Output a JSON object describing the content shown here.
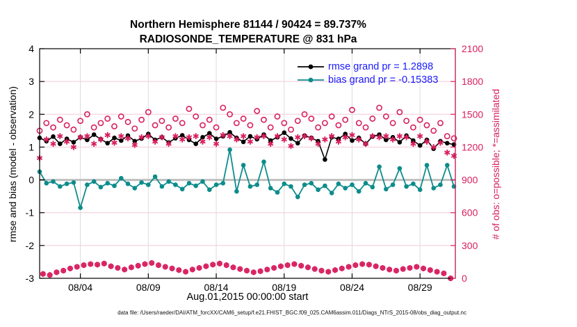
{
  "chart_data": {
    "type": "line",
    "title": "Northern Hemisphere 81144 / 90424 = 89.737%",
    "subtitle": "RADIOSONDE_TEMPERATURE @ 831 hPa",
    "xlabel": "Aug.01,2015 00:00:00 start",
    "footer": "data file: /Users/raeder/DAI/ATM_forcXX/CAM6_setup/f.e21.FHIST_BGC.f09_025.CAM6assim.011/Diags_NTrS_2015-08/obs_diag_output.nc",
    "legend": [
      {
        "label": "rmse grand pr = 1.2898",
        "series": "rmse"
      },
      {
        "label": "bias grand pr = -0.15383",
        "series": "bias"
      }
    ],
    "legend_position": "upper right inside, no box",
    "grid": true,
    "colors": {
      "rmse": "#000000",
      "bias": "#0d8c8c",
      "obs": "#d81e5f",
      "legend_text": "#1a1aff",
      "grid_v": "#dcdcdc",
      "grid_h": "#f2c9d7",
      "zero_line": "#bfbfbf",
      "axis_box": "#000000"
    },
    "x_axis": {
      "range_days": [
        0,
        30.6
      ],
      "tick_days": [
        3,
        8,
        13,
        18,
        23,
        28
      ],
      "tick_labels": [
        "08/04",
        "08/09",
        "08/14",
        "08/19",
        "08/24",
        "08/29"
      ]
    },
    "left_axis": {
      "label": "rmse and bias (model - observation)",
      "range": [
        -3,
        4
      ],
      "tick_values": [
        4,
        3,
        2,
        1,
        0,
        -1,
        -2,
        -3
      ],
      "tick_labels": [
        "4",
        "3",
        "2",
        "1",
        "0",
        "-1",
        "-2",
        "-3"
      ],
      "zero_reference_line": 0
    },
    "right_axis": {
      "label": "# of obs: o=possible; *=assimilated",
      "range": [
        0,
        2100
      ],
      "tick_values": [
        2100,
        1800,
        1500,
        1200,
        900,
        600,
        300,
        0
      ],
      "tick_labels": [
        "2100",
        "1800",
        "1500",
        "1200",
        "900",
        "600",
        "300",
        "0"
      ]
    },
    "series": {
      "time_days": [
        0,
        0.5,
        1,
        1.5,
        2,
        2.5,
        3,
        3.5,
        4,
        4.5,
        5,
        5.5,
        6,
        6.5,
        7,
        7.5,
        8,
        8.5,
        9,
        9.5,
        10,
        10.5,
        11,
        11.5,
        12,
        12.5,
        13,
        13.5,
        14,
        14.5,
        15,
        15.5,
        16,
        16.5,
        17,
        17.5,
        18,
        18.5,
        19,
        19.5,
        20,
        20.5,
        21,
        21.5,
        22,
        22.5,
        23,
        23.5,
        24,
        24.5,
        25,
        25.5,
        26,
        26.5,
        27,
        27.5,
        28,
        28.5,
        29,
        29.5,
        30,
        30.5
      ],
      "rmse": [
        1.28,
        1.18,
        1.32,
        1.1,
        1.25,
        1.15,
        1.3,
        1.22,
        1.38,
        1.24,
        1.12,
        1.28,
        1.2,
        1.35,
        1.18,
        1.26,
        1.4,
        1.22,
        1.3,
        1.14,
        1.27,
        1.36,
        1.22,
        1.1,
        1.3,
        1.42,
        1.25,
        1.33,
        1.45,
        1.28,
        1.16,
        1.33,
        1.24,
        1.38,
        1.2,
        1.3,
        1.44,
        1.26,
        1.12,
        1.35,
        1.28,
        1.18,
        0.62,
        1.3,
        1.25,
        1.4,
        1.2,
        1.28,
        1.1,
        1.32,
        1.38,
        1.22,
        1.3,
        1.15,
        1.35,
        1.2,
        1.05,
        1.22,
        0.95,
        1.18,
        1.12,
        1.08
      ],
      "bias": [
        0.25,
        -0.1,
        -0.05,
        -0.2,
        -0.12,
        -0.08,
        -0.85,
        -0.15,
        -0.05,
        -0.22,
        -0.1,
        -0.18,
        0.05,
        -0.12,
        -0.25,
        -0.08,
        -0.15,
        0.1,
        -0.2,
        -0.05,
        -0.15,
        -0.28,
        -0.1,
        -0.18,
        -0.05,
        -0.3,
        -0.15,
        -0.1,
        0.92,
        -0.35,
        0.45,
        -0.2,
        -0.15,
        0.55,
        -0.25,
        -0.38,
        -0.12,
        -0.2,
        -0.52,
        -0.15,
        -0.1,
        -0.3,
        -0.18,
        -0.4,
        -0.12,
        -0.25,
        -0.15,
        -0.35,
        -0.1,
        -0.22,
        0.4,
        -0.28,
        -0.15,
        0.35,
        -0.2,
        -0.12,
        -0.3,
        0.45,
        -0.25,
        -0.15,
        0.45,
        -0.2
      ],
      "possible": [
        1350,
        1420,
        1380,
        1450,
        1400,
        1360,
        1440,
        1500,
        1380,
        1420,
        1460,
        1390,
        1480,
        1430,
        1370,
        1450,
        1520,
        1400,
        1440,
        1380,
        1460,
        1420,
        1550,
        1480,
        1400,
        1450,
        1380,
        1560,
        1500,
        1420,
        1460,
        1400,
        1530,
        1450,
        1380,
        1480,
        1420,
        1360,
        1440,
        1500,
        1460,
        1380,
        1420,
        1480,
        1400,
        1450,
        1540,
        1420,
        1380,
        1460,
        1560,
        1480,
        1420,
        1520,
        1440,
        1380,
        1450,
        1400,
        1350,
        1420,
        1300,
        1280
      ],
      "assimilated": [
        1100,
        1270,
        1230,
        1300,
        1250,
        1200,
        1290,
        1300,
        1230,
        1270,
        1310,
        1240,
        1300,
        1280,
        1220,
        1290,
        1300,
        1250,
        1290,
        1230,
        1300,
        1270,
        1290,
        1300,
        1250,
        1290,
        1230,
        1310,
        1300,
        1270,
        1300,
        1250,
        1290,
        1300,
        1230,
        1300,
        1270,
        1210,
        1290,
        1300,
        1280,
        1230,
        1270,
        1300,
        1250,
        1290,
        1310,
        1270,
        1230,
        1300,
        1290,
        1300,
        1270,
        1300,
        1290,
        1230,
        1300,
        1250,
        1200,
        1240,
        1150,
        1120
      ],
      "offhour_time_days": [
        0.25,
        0.75,
        1.25,
        1.75,
        2.25,
        2.75,
        3.25,
        3.75,
        4.25,
        4.75,
        5.25,
        5.75,
        6.25,
        6.75,
        7.25,
        7.75,
        8.25,
        8.75,
        9.25,
        9.75,
        10.25,
        10.75,
        11.25,
        11.75,
        12.25,
        12.75,
        13.25,
        13.75,
        14.25,
        14.75,
        15.25,
        15.75,
        16.25,
        16.75,
        17.25,
        17.75,
        18.25,
        18.75,
        19.25,
        19.75,
        20.25,
        20.75,
        21.25,
        21.75,
        22.25,
        22.75,
        23.25,
        23.75,
        24.25,
        24.75,
        25.25,
        25.75,
        26.25,
        26.75,
        27.25,
        27.75,
        28.25,
        28.75,
        29.25,
        29.75,
        30.25
      ],
      "offhour_counts": [
        40,
        30,
        55,
        70,
        90,
        105,
        120,
        130,
        125,
        135,
        110,
        95,
        80,
        100,
        115,
        130,
        140,
        120,
        105,
        90,
        75,
        60,
        80,
        95,
        110,
        125,
        135,
        120,
        100,
        85,
        70,
        55,
        65,
        80,
        95,
        110,
        120,
        130,
        115,
        100,
        85,
        70,
        60,
        75,
        90,
        105,
        120,
        130,
        125,
        110,
        95,
        80,
        70,
        85,
        95,
        105,
        90,
        75,
        60,
        45,
        0
      ]
    }
  }
}
